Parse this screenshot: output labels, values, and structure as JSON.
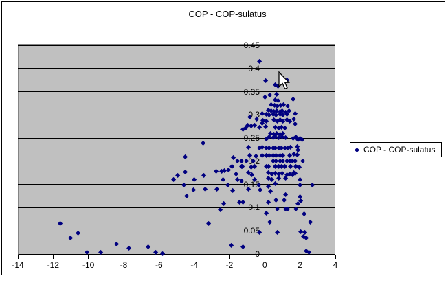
{
  "chart": {
    "title": "COP - COP-sulatus"
  },
  "legend": {
    "label": "COP - COP-sulatus"
  },
  "colors": {
    "marker": "#000080",
    "plot_background": "#c0c0c0",
    "gridline": "#000000",
    "legend_background": "#ffffff"
  },
  "icons": {
    "legend_marker": "diamond-icon",
    "cursor": "arrow-cursor-icon"
  },
  "chart_data": {
    "type": "scatter",
    "title": "COP - COP-sulatus",
    "xlabel": "",
    "ylabel": "",
    "xlim": [
      -14,
      4
    ],
    "ylim": [
      0,
      0.45
    ],
    "x_tick_labels": [
      "-14",
      "-12",
      "-10",
      "-8",
      "-6",
      "-4",
      "-2",
      "0",
      "2",
      "4"
    ],
    "y_tick_labels": [
      "0.45",
      "0.4",
      "0.35",
      "0.3",
      "0.25",
      "0.2",
      "0.15",
      "0.1",
      "0.05",
      "0"
    ],
    "grid": true,
    "legend_position": "right",
    "series": [
      {
        "name": "COP - COP-sulatus",
        "marker": "diamond",
        "points": [
          [
            -11.6,
            0.065
          ],
          [
            -11.0,
            0.034
          ],
          [
            -10.6,
            0.045
          ],
          [
            -10.1,
            0.004
          ],
          [
            -9.3,
            0.004
          ],
          [
            -8.4,
            0.022
          ],
          [
            -7.7,
            0.013
          ],
          [
            -6.6,
            0.015
          ],
          [
            -6.2,
            0.004
          ],
          [
            -5.8,
            0.001
          ],
          [
            -5.18,
            0.16
          ],
          [
            -4.92,
            0.169
          ],
          [
            -4.58,
            0.148
          ],
          [
            -4.52,
            0.177
          ],
          [
            -4.5,
            0.209
          ],
          [
            -4.43,
            0.125
          ],
          [
            -4.04,
            0.138
          ],
          [
            -4.01,
            0.16
          ],
          [
            -3.5,
            0.239
          ],
          [
            -3.45,
            0.169
          ],
          [
            -3.36,
            0.139
          ],
          [
            -3.2,
            0.065
          ],
          [
            -2.77,
            0.178
          ],
          [
            -2.71,
            0.139
          ],
          [
            -2.51,
            0.095
          ],
          [
            -2.45,
            0.178
          ],
          [
            -2.38,
            0.161
          ],
          [
            -2.34,
            0.109
          ],
          [
            -2.27,
            0.18
          ],
          [
            -2.08,
            0.148
          ],
          [
            -2.06,
            0.181
          ],
          [
            -1.88,
            0.018
          ],
          [
            -1.86,
            0.188
          ],
          [
            -1.81,
            0.137
          ],
          [
            -1.78,
            0.208
          ],
          [
            -1.61,
            0.172
          ],
          [
            -1.56,
            0.2
          ],
          [
            -1.56,
            0.16
          ],
          [
            -1.43,
            0.111
          ],
          [
            -1.33,
            0.189
          ],
          [
            -1.3,
            0.158
          ],
          [
            -1.24,
            0.016
          ],
          [
            -1.3,
            0.2
          ],
          [
            -1.26,
            0.188
          ],
          [
            -1.24,
            0.268
          ],
          [
            -1.24,
            0.111
          ],
          [
            -1.1,
            0.272
          ],
          [
            -1.04,
            0.2
          ],
          [
            -0.98,
            0.277
          ],
          [
            -0.91,
            0.23
          ],
          [
            -0.91,
            0.175
          ],
          [
            -0.91,
            0.139
          ],
          [
            -0.85,
            0.295
          ],
          [
            -0.85,
            0.213
          ],
          [
            -0.78,
            0.276
          ],
          [
            -0.78,
            0.187
          ],
          [
            -0.72,
            0.171
          ],
          [
            -0.65,
            0.201
          ],
          [
            -0.59,
            0.277
          ],
          [
            -0.59,
            0.188
          ],
          [
            -0.59,
            0.161
          ],
          [
            -0.48,
            0.211
          ],
          [
            -0.46,
            0.29
          ],
          [
            -0.35,
            0.149
          ],
          [
            -0.32,
            0.273
          ],
          [
            -0.32,
            0.228
          ],
          [
            -0.32,
            0.047
          ],
          [
            -0.3,
            0.415
          ],
          [
            -0.26,
            0.138
          ],
          [
            -0.13,
            0.302
          ],
          [
            -0.13,
            0.282
          ],
          [
            -0.13,
            0.23
          ],
          [
            -0.13,
            0.213
          ],
          [
            -0.09,
            0.288
          ],
          [
            0,
            0.338
          ],
          [
            0.04,
            0.275
          ],
          [
            0.05,
            0.373
          ],
          [
            0.07,
            0.248
          ],
          [
            0.07,
            0.228
          ],
          [
            0.07,
            0.212
          ],
          [
            0.07,
            0.188
          ],
          [
            0.08,
            0.301
          ],
          [
            0.09,
            0.287
          ],
          [
            0.09,
            0.088
          ],
          [
            0.2,
            0.31
          ],
          [
            0.2,
            0.175
          ],
          [
            0.2,
            0.164
          ],
          [
            0.2,
            0.145
          ],
          [
            0.22,
            0.189
          ],
          [
            0.22,
            0.111
          ],
          [
            0.26,
            0.3
          ],
          [
            0.26,
            0.252
          ],
          [
            0.26,
            0.229
          ],
          [
            0.26,
            0.213
          ],
          [
            0.3,
            0.342
          ],
          [
            0.3,
            0.069
          ],
          [
            0.32,
            0.26
          ],
          [
            0.32,
            0.135
          ],
          [
            0.36,
            0.308
          ],
          [
            0.38,
            0.322
          ],
          [
            0.39,
            0.173
          ],
          [
            0.39,
            0.161
          ],
          [
            0.46,
            0.301
          ],
          [
            0.46,
            0.251
          ],
          [
            0.46,
            0.228
          ],
          [
            0.46,
            0.212
          ],
          [
            0.46,
            0.2
          ],
          [
            0.52,
            0.307
          ],
          [
            0.52,
            0.289
          ],
          [
            0.52,
            0.258
          ],
          [
            0.55,
            0.32
          ],
          [
            0.59,
            0.332
          ],
          [
            0.59,
            0.273
          ],
          [
            0.59,
            0.188
          ],
          [
            0.59,
            0.174
          ],
          [
            0.59,
            0.151
          ],
          [
            0.6,
            0.364
          ],
          [
            0.61,
            0.252
          ],
          [
            0.61,
            0.229
          ],
          [
            0.65,
            0.3
          ],
          [
            0.65,
            0.213
          ],
          [
            0.65,
            0.2
          ],
          [
            0.65,
            0.116
          ],
          [
            0.68,
            0.344
          ],
          [
            0.68,
            0.308
          ],
          [
            0.69,
            0.26
          ],
          [
            0.71,
            0.287
          ],
          [
            0.71,
            0.097
          ],
          [
            0.71,
            0.047
          ],
          [
            0.72,
            0.319
          ],
          [
            0.75,
            0.362
          ],
          [
            0.75,
            0.33
          ],
          [
            0.78,
            0.272
          ],
          [
            0.78,
            0.251
          ],
          [
            0.78,
            0.228
          ],
          [
            0.78,
            0.189
          ],
          [
            0.78,
            0.173
          ],
          [
            0.78,
            0.163
          ],
          [
            0.85,
            0.307
          ],
          [
            0.85,
            0.301
          ],
          [
            0.85,
            0.212
          ],
          [
            0.85,
            0.2
          ],
          [
            0.87,
            0.289
          ],
          [
            0.87,
            0.258
          ],
          [
            0.91,
            0.32
          ],
          [
            0.95,
            0.273
          ],
          [
            0.95,
            0.229
          ],
          [
            0.95,
            0.188
          ],
          [
            0.98,
            0.252
          ],
          [
            0.98,
            0.174
          ],
          [
            1.0,
            0.308
          ],
          [
            1.04,
            0.3
          ],
          [
            1.04,
            0.287
          ],
          [
            1.04,
            0.26
          ],
          [
            1.04,
            0.213
          ],
          [
            1.04,
            0.2
          ],
          [
            1.05,
            0.322
          ],
          [
            1.11,
            0.116
          ],
          [
            1.13,
            0.272
          ],
          [
            1.13,
            0.228
          ],
          [
            1.13,
            0.189
          ],
          [
            1.17,
            0.251
          ],
          [
            1.17,
            0.164
          ],
          [
            1.17,
            0.128
          ],
          [
            1.17,
            0.097
          ],
          [
            1.18,
            0.306
          ],
          [
            1.24,
            0.301
          ],
          [
            1.24,
            0.289
          ],
          [
            1.24,
            0.2
          ],
          [
            1.24,
            0.171
          ],
          [
            1.25,
            0.375
          ],
          [
            1.3,
            0.319
          ],
          [
            1.3,
            0.229
          ],
          [
            1.3,
            0.097
          ],
          [
            1.37,
            0.308
          ],
          [
            1.41,
            0.287
          ],
          [
            1.43,
            0.213
          ],
          [
            1.43,
            0.2
          ],
          [
            1.43,
            0.173
          ],
          [
            1.47,
            0.23
          ],
          [
            1.47,
            0.189
          ],
          [
            1.55,
            0.201
          ],
          [
            1.55,
            0.171
          ],
          [
            1.59,
            0.25
          ],
          [
            1.6,
            0.333
          ],
          [
            1.63,
            0.215
          ],
          [
            1.65,
            0.29
          ],
          [
            1.65,
            0.176
          ],
          [
            1.71,
            0.302
          ],
          [
            1.72,
            0.28
          ],
          [
            1.72,
            0.2
          ],
          [
            1.72,
            0.174
          ],
          [
            1.76,
            0.097
          ],
          [
            1.78,
            0.252
          ],
          [
            1.78,
            0.188
          ],
          [
            1.85,
            0.231
          ],
          [
            1.85,
            0.214
          ],
          [
            1.89,
            0.246
          ],
          [
            1.89,
            0.224
          ],
          [
            1.89,
            0.108
          ],
          [
            1.94,
            0.187
          ],
          [
            1.98,
            0.25
          ],
          [
            1.98,
            0.16
          ],
          [
            1.98,
            0.148
          ],
          [
            1.98,
            0.124
          ],
          [
            2.02,
            0.114
          ],
          [
            2.04,
            0.048
          ],
          [
            2.11,
            0.247
          ],
          [
            2.15,
            0.201
          ],
          [
            2.2,
            0.038
          ],
          [
            2.24,
            0.087
          ],
          [
            2.28,
            0.046
          ],
          [
            2.33,
            0.034
          ],
          [
            2.33,
            0.006
          ],
          [
            2.5,
            0.004
          ],
          [
            2.57,
            0.068
          ],
          [
            2.7,
            0.149
          ]
        ]
      }
    ]
  }
}
